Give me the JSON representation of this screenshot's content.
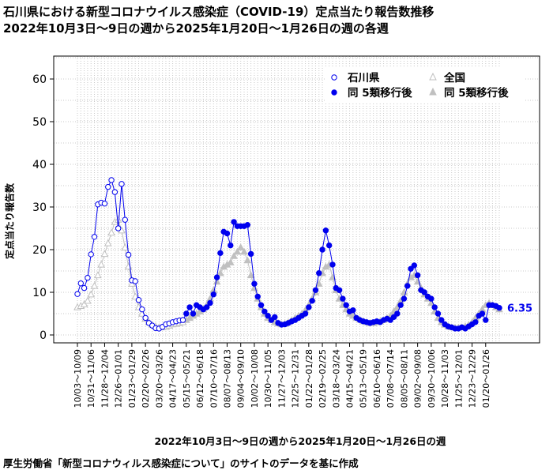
{
  "titles": {
    "line1": "石川県における新型コロナウイルス感染症（COVID-19）定点当たり報告数推移",
    "line2": "2022年10月3日～9日の週から2025年1月20日～1月26日の週の各週"
  },
  "source_note": "厚生労働省「新型コロナウィルス感染症について」のサイトのデータを基に作成",
  "colors": {
    "ishikawa": "#0000ee",
    "national": "#c0c0c0",
    "grid": "#c8c8c8"
  },
  "chart_data": {
    "type": "line",
    "xlabel": "2022年10月3日～9日の週から2025年1月20日～1月26日の週",
    "ylabel": "定点当たり報告数",
    "ylim": [
      0,
      65
    ],
    "yticks": [
      0,
      10,
      20,
      30,
      40,
      50,
      60
    ],
    "xtick_labels": [
      "10/03～10/09",
      "10/31～11/06",
      "11/28～12/04",
      "12/26～01/01",
      "01/23～01/29",
      "02/20～02/26",
      "03/20～03/26",
      "04/17～04/23",
      "05/15～05/21",
      "06/12～06/18",
      "07/10～07/16",
      "08/07～08/13",
      "09/04～09/10",
      "10/02～10/08",
      "10/30～11/05",
      "11/27～12/03",
      "12/25～12/31",
      "01/22～01/28",
      "02/19～02/25",
      "03/18～03/24",
      "04/15～04/21",
      "05/13～05/19",
      "06/10～06/16",
      "07/08～07/14",
      "08/05～08/11",
      "09/02～09/08",
      "09/30～10/06",
      "10/28～11/03",
      "11/25～12/01",
      "12/23～12/29",
      "01/20～01/26"
    ],
    "xtick_every": 4,
    "legend": {
      "position": "top-right",
      "entries": [
        "石川県",
        "全国",
        "同 5類移行後",
        "同 5類移行後"
      ]
    },
    "end_label": "6.35",
    "reclassification_index": 32,
    "series": [
      {
        "name": "石川県",
        "values": [
          9.6,
          12.1,
          11.0,
          13.4,
          18.9,
          23.0,
          30.6,
          31.0,
          30.8,
          34.7,
          36.3,
          33.5,
          25.0,
          35.4,
          27.0,
          18.8,
          12.8,
          12.6,
          8.2,
          6.0,
          4.0,
          2.8,
          2.2,
          1.6,
          1.5,
          1.9,
          2.5,
          2.7,
          3.0,
          3.2,
          3.4,
          3.5,
          5.0,
          6.5,
          5.0,
          7.0,
          6.5,
          6.0,
          6.5,
          7.5,
          9.5,
          13.5,
          19.2,
          24.2,
          23.8,
          21.0,
          26.5,
          25.5,
          25.5,
          25.5,
          25.8,
          19.0,
          12.0,
          9.0,
          7.0,
          5.5,
          4.5,
          3.5,
          4.2,
          2.8,
          2.4,
          2.5,
          2.8,
          3.2,
          3.5,
          4.0,
          4.5,
          5.0,
          6.5,
          8.0,
          10.5,
          14.5,
          20.0,
          24.5,
          21.0,
          16.5,
          11.0,
          10.5,
          8.5,
          7.0,
          5.5,
          5.8,
          4.0,
          3.5,
          3.2,
          3.0,
          2.8,
          3.0,
          3.2,
          3.0,
          3.5,
          3.8,
          3.5,
          4.2,
          5.0,
          7.0,
          8.5,
          11.5,
          15.5,
          16.3,
          14.0,
          10.5,
          10.0,
          9.0,
          8.5,
          6.5,
          5.0,
          3.5,
          2.5,
          2.0,
          1.8,
          1.5,
          1.5,
          1.8,
          1.5,
          2.0,
          2.5,
          3.0,
          4.5,
          5.0,
          3.5,
          7.0,
          7.0,
          6.8,
          6.35
        ]
      },
      {
        "name": "全国",
        "values": [
          6.5,
          6.8,
          7.2,
          8.0,
          9.5,
          11.5,
          14.0,
          16.5,
          19.0,
          21.5,
          24.0,
          26.5,
          27.0,
          24.5,
          20.5,
          16.0,
          12.0,
          9.0,
          6.5,
          5.0,
          3.8,
          3.0,
          2.4,
          2.0,
          1.8,
          1.8,
          1.9,
          2.2,
          2.5,
          2.6,
          2.8,
          3.0,
          3.5,
          4.0,
          4.5,
          5.0,
          5.5,
          6.0,
          7.0,
          8.5,
          10.5,
          12.5,
          14.5,
          16.0,
          16.5,
          17.0,
          18.5,
          19.5,
          20.5,
          19.5,
          17.5,
          14.0,
          11.0,
          8.5,
          6.5,
          5.0,
          4.0,
          3.5,
          3.0,
          2.7,
          2.5,
          2.6,
          3.0,
          3.5,
          4.0,
          4.5,
          5.0,
          5.8,
          7.0,
          8.5,
          10.0,
          12.0,
          14.5,
          16.0,
          16.5,
          13.5,
          10.5,
          8.5,
          7.0,
          6.0,
          5.0,
          4.5,
          4.0,
          3.6,
          3.2,
          3.0,
          2.8,
          2.8,
          3.0,
          3.2,
          3.5,
          4.0,
          4.5,
          5.5,
          6.5,
          8.0,
          10.0,
          12.0,
          13.5,
          14.0,
          12.5,
          11.0,
          9.5,
          8.5,
          7.5,
          5.5,
          4.0,
          3.0,
          2.4,
          2.0,
          1.8,
          1.7,
          1.7,
          1.8,
          2.0,
          2.4,
          3.0,
          4.0,
          5.0,
          6.0,
          7.0,
          7.5,
          7.0,
          6.5,
          6.0
        ]
      }
    ]
  }
}
